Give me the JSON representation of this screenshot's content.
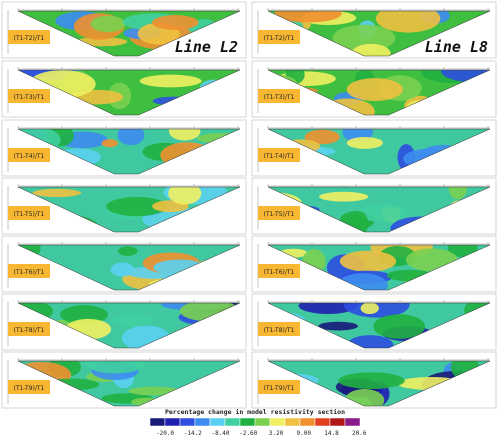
{
  "columns": [
    {
      "title": "Line L2",
      "panels": [
        "(T1-T2)/T1",
        "(T1-T3)/T1",
        "(T1-T4)/T1",
        "(T1-T5)/T1",
        "(T1-T6)/T1",
        "(T1-T8)/T1",
        "(T1-T9)/T1"
      ]
    },
    {
      "title": "Line L8",
      "panels": [
        "(T1-T2)/T1",
        "(T1-T3)/T1",
        "(T1-T4)/T1",
        "(T1-T5)/T1",
        "(T1-T6)/T1",
        "(T1-T8)/T1",
        "(T1-T9)/T1"
      ]
    }
  ],
  "colorbar": {
    "title": "Percentage change in model resistivity section",
    "labels": [
      "-20.0",
      "-14.2",
      "-8.40",
      "-2.60",
      "3.20",
      "9.00",
      "14.8",
      "20.6"
    ]
  }
}
